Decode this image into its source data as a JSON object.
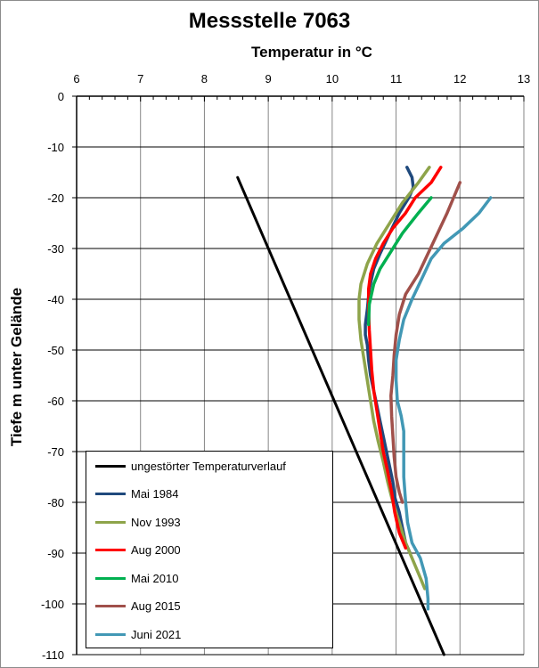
{
  "chart_data": {
    "type": "line",
    "title": "Messstelle 7063",
    "xlabel": "Temperatur in °C",
    "ylabel": "Tiefe m unter Gelände",
    "xlim": [
      6,
      13
    ],
    "ylim": [
      -110,
      0
    ],
    "x_ticks": [
      "6",
      "7",
      "8",
      "9",
      "10",
      "11",
      "12",
      "13"
    ],
    "y_ticks": [
      "0",
      "-10",
      "-20",
      "-30",
      "-40",
      "-50",
      "-60",
      "-70",
      "-80",
      "-90",
      "-100",
      "-110"
    ],
    "grid": true,
    "legend_position": "bottom-left",
    "series": [
      {
        "name": "ungestörter Temperaturverlauf",
        "color": "#000000",
        "points": [
          [
            8.52,
            -16
          ],
          [
            11.75,
            -110
          ]
        ]
      },
      {
        "name": "Mai 1984",
        "color": "#1f497d",
        "points": [
          [
            11.17,
            -14
          ],
          [
            11.25,
            -16
          ],
          [
            11.27,
            -18
          ],
          [
            11.2,
            -20
          ],
          [
            11.05,
            -23
          ],
          [
            10.9,
            -27
          ],
          [
            10.75,
            -31
          ],
          [
            10.65,
            -34
          ],
          [
            10.58,
            -38
          ],
          [
            10.55,
            -42
          ],
          [
            10.52,
            -45
          ],
          [
            10.52,
            -47
          ],
          [
            10.55,
            -49
          ],
          [
            10.57,
            -52
          ],
          [
            10.6,
            -55
          ],
          [
            10.65,
            -58
          ],
          [
            10.7,
            -61
          ],
          [
            10.75,
            -64
          ],
          [
            10.8,
            -67
          ],
          [
            10.85,
            -70
          ],
          [
            10.9,
            -73
          ],
          [
            10.95,
            -76
          ],
          [
            10.98,
            -79
          ],
          [
            11.05,
            -82
          ],
          [
            11.1,
            -85
          ],
          [
            11.15,
            -88
          ],
          [
            11.22,
            -90
          ]
        ]
      },
      {
        "name": "Nov 1993",
        "color": "#8ea44a",
        "points": [
          [
            11.52,
            -14
          ],
          [
            11.35,
            -17
          ],
          [
            11.1,
            -21
          ],
          [
            10.9,
            -25
          ],
          [
            10.7,
            -29
          ],
          [
            10.55,
            -33
          ],
          [
            10.45,
            -37
          ],
          [
            10.42,
            -40
          ],
          [
            10.42,
            -44
          ],
          [
            10.45,
            -48
          ],
          [
            10.5,
            -52
          ],
          [
            10.55,
            -56
          ],
          [
            10.6,
            -60
          ],
          [
            10.65,
            -64
          ],
          [
            10.72,
            -68
          ],
          [
            10.8,
            -72
          ],
          [
            10.87,
            -76
          ],
          [
            10.95,
            -80
          ],
          [
            11.05,
            -84
          ],
          [
            11.15,
            -88
          ],
          [
            11.25,
            -91
          ],
          [
            11.35,
            -94
          ],
          [
            11.45,
            -97
          ]
        ]
      },
      {
        "name": "Aug 2000",
        "color": "#ff0000",
        "points": [
          [
            11.7,
            -14
          ],
          [
            11.55,
            -17
          ],
          [
            11.3,
            -20
          ],
          [
            11.15,
            -23
          ],
          [
            10.95,
            -26
          ],
          [
            10.8,
            -29
          ],
          [
            10.68,
            -32
          ],
          [
            10.6,
            -35
          ],
          [
            10.57,
            -38
          ],
          [
            10.57,
            -42
          ],
          [
            10.58,
            -46
          ],
          [
            10.6,
            -50
          ],
          [
            10.62,
            -54
          ],
          [
            10.65,
            -58
          ],
          [
            10.7,
            -62
          ],
          [
            10.75,
            -66
          ],
          [
            10.8,
            -70
          ],
          [
            10.87,
            -74
          ],
          [
            10.93,
            -78
          ],
          [
            10.98,
            -82
          ],
          [
            11.05,
            -86
          ],
          [
            11.15,
            -89
          ]
        ]
      },
      {
        "name": "Mai 2010",
        "color": "#00b050",
        "points": [
          [
            11.55,
            -20
          ],
          [
            11.35,
            -23
          ],
          [
            11.1,
            -27
          ],
          [
            10.9,
            -31
          ],
          [
            10.75,
            -34
          ],
          [
            10.65,
            -37
          ],
          [
            10.58,
            -41
          ],
          [
            10.57,
            -45
          ]
        ]
      },
      {
        "name": "Aug 2015",
        "color": "#a0504a",
        "points": [
          [
            12.0,
            -17
          ],
          [
            11.9,
            -20
          ],
          [
            11.8,
            -23
          ],
          [
            11.65,
            -27
          ],
          [
            11.5,
            -31
          ],
          [
            11.35,
            -35
          ],
          [
            11.15,
            -39
          ],
          [
            11.05,
            -43
          ],
          [
            11.0,
            -47
          ],
          [
            10.97,
            -51
          ],
          [
            10.95,
            -55
          ],
          [
            10.92,
            -59
          ],
          [
            10.93,
            -63
          ],
          [
            10.95,
            -67
          ],
          [
            10.97,
            -71
          ],
          [
            11.0,
            -75
          ],
          [
            11.05,
            -78
          ],
          [
            11.1,
            -80
          ]
        ]
      },
      {
        "name": "Juni 2021",
        "color": "#4298b5",
        "points": [
          [
            12.48,
            -20
          ],
          [
            12.3,
            -23
          ],
          [
            12.05,
            -26
          ],
          [
            11.75,
            -29
          ],
          [
            11.55,
            -32
          ],
          [
            11.4,
            -36
          ],
          [
            11.25,
            -40
          ],
          [
            11.12,
            -44
          ],
          [
            11.05,
            -48
          ],
          [
            11.0,
            -52
          ],
          [
            11.0,
            -56
          ],
          [
            11.02,
            -60
          ],
          [
            11.08,
            -63
          ],
          [
            11.12,
            -66
          ],
          [
            11.12,
            -70
          ],
          [
            11.12,
            -75
          ],
          [
            11.15,
            -80
          ],
          [
            11.18,
            -84
          ],
          [
            11.25,
            -88
          ],
          [
            11.38,
            -91
          ],
          [
            11.47,
            -95
          ],
          [
            11.5,
            -99
          ],
          [
            11.5,
            -101
          ]
        ]
      }
    ]
  }
}
